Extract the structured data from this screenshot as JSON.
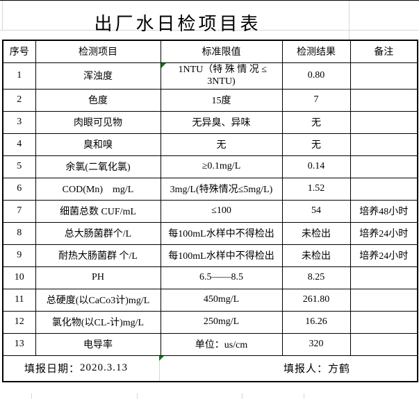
{
  "title": "出厂水日检项目表",
  "columns": [
    "序号",
    "检测项目",
    "标准限值",
    "检测结果",
    "备注"
  ],
  "rows": [
    {
      "no": "1",
      "item": "浑浊度",
      "standard": " 1NTU（特 殊 情 况 ≤\n3NTU)",
      "result": "0.80",
      "note": "",
      "error_indicator": true
    },
    {
      "no": "2",
      "item": "色度",
      "standard": "15度",
      "result": "7",
      "note": ""
    },
    {
      "no": "3",
      "item": "肉眼可见物",
      "standard": "无异臭、异味",
      "result": "无",
      "note": ""
    },
    {
      "no": "4",
      "item": "臭和嗅",
      "standard": "无",
      "result": "无",
      "note": ""
    },
    {
      "no": "5",
      "item": "余氯(二氧化氯)",
      "standard": "≥0.1mg/L",
      "result": "0.14",
      "note": ""
    },
    {
      "no": "6",
      "item": "COD(Mn)　mg/L",
      "standard": "3mg/L(特殊情况≤5mg/L)",
      "result": "1.52",
      "note": ""
    },
    {
      "no": "7",
      "item": "细菌总数 CUF/mL",
      "standard": "≤100",
      "result": "54",
      "note": "培养48小时"
    },
    {
      "no": "8",
      "item": "总大肠菌群个/L",
      "standard": "每100mL水样中不得检出",
      "result": "未检出",
      "note": "培养24小时"
    },
    {
      "no": "9",
      "item": "耐热大肠菌群 个/L",
      "standard": "每100mL水样中不得检出",
      "result": "未检出",
      "note": "培养24小时"
    },
    {
      "no": "10",
      "item": "PH",
      "standard": "6.5——8.5",
      "result": "8.25",
      "note": ""
    },
    {
      "no": "11",
      "item": "总硬度(以CaCo3计)mg/L",
      "standard": "450mg/L",
      "result": "261.80",
      "note": ""
    },
    {
      "no": "12",
      "item": "氯化物(以CL-计)mg/L",
      "standard": "250mg/L",
      "result": "16.26",
      "note": ""
    },
    {
      "no": "13",
      "item": "电导率",
      "standard": "单位：us/cm",
      "result": "320",
      "note": ""
    }
  ],
  "footer": {
    "date_label": "填报日期：",
    "date_value": "2020.3.13",
    "reporter_label": "填报人：",
    "reporter_value": "方鹤"
  },
  "colors": {
    "border": "#000000",
    "gridline": "#d6d6d6",
    "error_indicator": "#0a7a0a",
    "text": "#000000",
    "background": "#ffffff"
  }
}
